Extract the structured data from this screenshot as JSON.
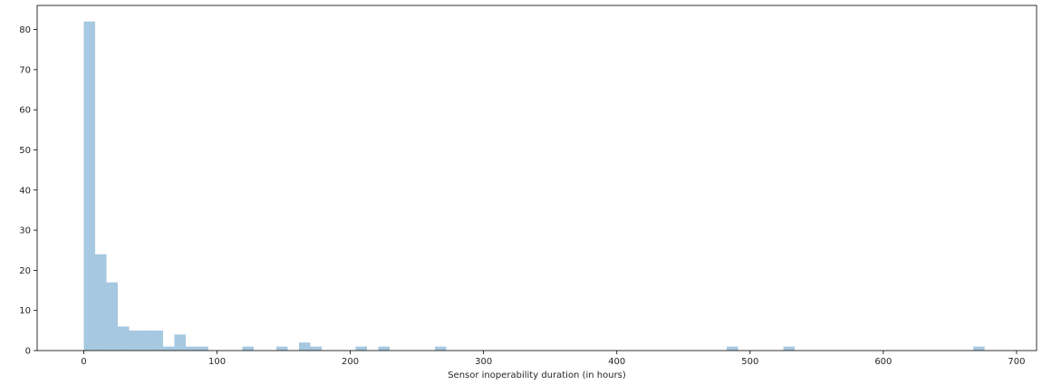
{
  "chart_data": {
    "type": "bar",
    "subtype": "histogram",
    "title": "",
    "xlabel": "Sensor inoperability duration (in hours)",
    "ylabel": "",
    "xlim": [
      -35,
      715
    ],
    "ylim": [
      0,
      86
    ],
    "xticks": [
      0,
      100,
      200,
      300,
      400,
      500,
      600,
      700
    ],
    "yticks": [
      0,
      10,
      20,
      30,
      40,
      50,
      60,
      70,
      80
    ],
    "bin_width": 8.5,
    "bins": [
      {
        "x0": 0.0,
        "x1": 8.5,
        "count": 82
      },
      {
        "x0": 8.5,
        "x1": 17.0,
        "count": 24
      },
      {
        "x0": 17.0,
        "x1": 25.5,
        "count": 17
      },
      {
        "x0": 25.5,
        "x1": 34.0,
        "count": 6
      },
      {
        "x0": 34.0,
        "x1": 42.5,
        "count": 5
      },
      {
        "x0": 42.5,
        "x1": 51.0,
        "count": 5
      },
      {
        "x0": 51.0,
        "x1": 59.5,
        "count": 5
      },
      {
        "x0": 59.5,
        "x1": 68.0,
        "count": 1
      },
      {
        "x0": 68.0,
        "x1": 76.5,
        "count": 4
      },
      {
        "x0": 76.5,
        "x1": 85.0,
        "count": 1
      },
      {
        "x0": 85.0,
        "x1": 93.5,
        "count": 1
      },
      {
        "x0": 119.0,
        "x1": 127.5,
        "count": 1
      },
      {
        "x0": 144.5,
        "x1": 153.0,
        "count": 1
      },
      {
        "x0": 161.5,
        "x1": 170.0,
        "count": 2
      },
      {
        "x0": 170.0,
        "x1": 178.5,
        "count": 1
      },
      {
        "x0": 204.0,
        "x1": 212.5,
        "count": 1
      },
      {
        "x0": 221.0,
        "x1": 229.5,
        "count": 1
      },
      {
        "x0": 263.5,
        "x1": 272.0,
        "count": 1
      },
      {
        "x0": 482.5,
        "x1": 491.0,
        "count": 1
      },
      {
        "x0": 525.0,
        "x1": 533.5,
        "count": 1
      },
      {
        "x0": 667.5,
        "x1": 676.0,
        "count": 1
      }
    ],
    "grid": false,
    "legend": false,
    "bar_color": "#a6c8e0",
    "axis_color": "#000000"
  }
}
